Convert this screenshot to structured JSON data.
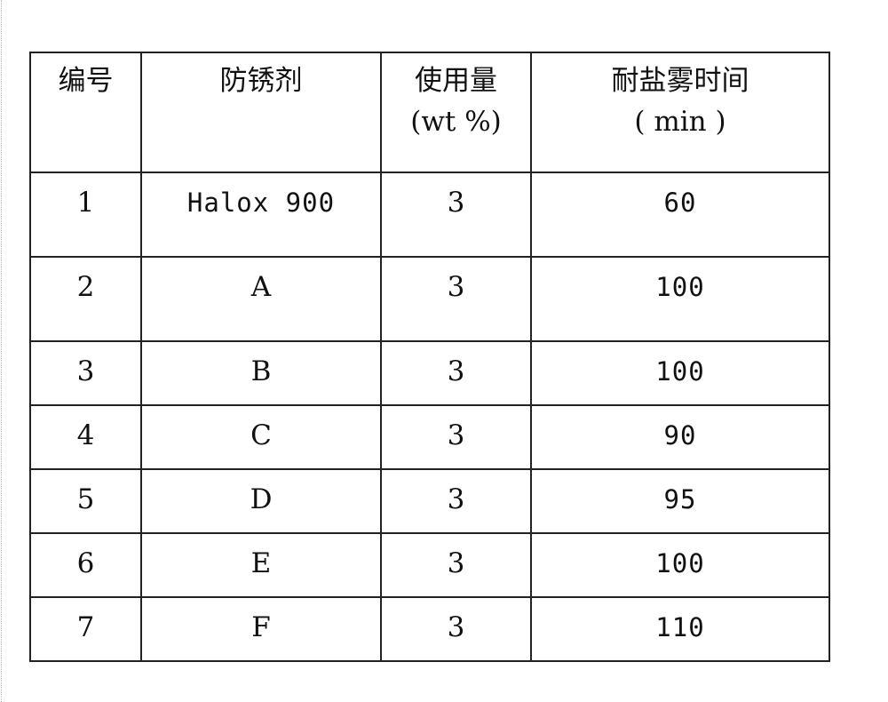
{
  "table": {
    "headers": [
      {
        "line1": "编号",
        "line2": ""
      },
      {
        "line1": "防锈剂",
        "line2": ""
      },
      {
        "line1": "使用量",
        "line2": "(wt %)"
      },
      {
        "line1": "耐盐雾时间",
        "line2": "( min )"
      }
    ],
    "rows": [
      [
        "1",
        "Halox 900",
        "3",
        "60"
      ],
      [
        "2",
        "A",
        "3",
        "100"
      ],
      [
        "3",
        "B",
        "3",
        "100"
      ],
      [
        "4",
        "C",
        "3",
        "90"
      ],
      [
        "5",
        "D",
        "3",
        "95"
      ],
      [
        "6",
        "E",
        "3",
        "100"
      ],
      [
        "7",
        "F",
        "3",
        "110"
      ]
    ]
  }
}
